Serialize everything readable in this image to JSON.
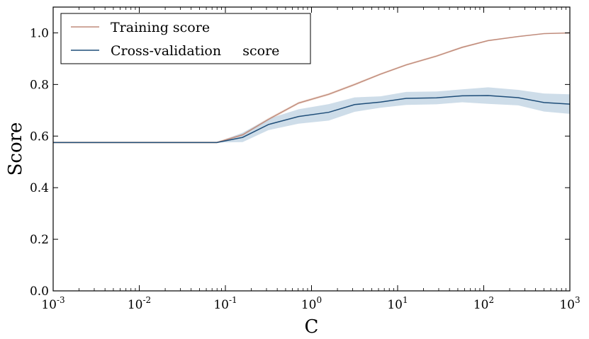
{
  "chart_data": {
    "type": "line",
    "title": "",
    "xlabel": "C",
    "ylabel": "Score",
    "xscale": "log",
    "xlim_exp": [
      -3,
      3
    ],
    "ylim": [
      0,
      1.1
    ],
    "x_ticks": [
      {
        "base": "10",
        "exp": "-3"
      },
      {
        "base": "10",
        "exp": "-2"
      },
      {
        "base": "10",
        "exp": "-1"
      },
      {
        "base": "10",
        "exp": "0"
      },
      {
        "base": "10",
        "exp": "1"
      },
      {
        "base": "10",
        "exp": "2"
      },
      {
        "base": "10",
        "exp": "3"
      }
    ],
    "y_ticks": [
      "0.0",
      "0.2",
      "0.4",
      "0.6",
      "0.8",
      "1.0"
    ],
    "legend_position": "top-left",
    "series": [
      {
        "name": "Training score",
        "color": "#c08c7c",
        "band_color": "#f0d8cc",
        "x_exp": [
          -3,
          -1.1,
          -0.8,
          -0.5,
          -0.15,
          0.2,
          0.5,
          0.8,
          1.1,
          1.45,
          1.75,
          2.05,
          2.4,
          2.7,
          3.0
        ],
        "values": [
          0.575,
          0.575,
          0.605,
          0.665,
          0.728,
          0.762,
          0.8,
          0.84,
          0.876,
          0.91,
          0.944,
          0.97,
          0.986,
          0.997,
          1.0
        ],
        "band": [
          0.004,
          0.004,
          0.006,
          0.006,
          0.005,
          0.005,
          0.005,
          0.004,
          0.004,
          0.004,
          0.004,
          0.003,
          0.002,
          0.001,
          0.001
        ]
      },
      {
        "name": "Cross-validation     score",
        "color": "#1f4e79",
        "band_color": "#aec6da",
        "x_exp": [
          -3,
          -1.1,
          -0.8,
          -0.5,
          -0.15,
          0.2,
          0.5,
          0.8,
          1.1,
          1.45,
          1.75,
          2.05,
          2.4,
          2.7,
          3.0
        ],
        "values": [
          0.575,
          0.575,
          0.595,
          0.645,
          0.676,
          0.692,
          0.722,
          0.732,
          0.746,
          0.748,
          0.756,
          0.757,
          0.749,
          0.73,
          0.724
        ],
        "band": [
          0.0,
          0.0,
          0.018,
          0.022,
          0.028,
          0.032,
          0.028,
          0.022,
          0.025,
          0.025,
          0.025,
          0.032,
          0.03,
          0.035,
          0.038
        ]
      }
    ]
  }
}
